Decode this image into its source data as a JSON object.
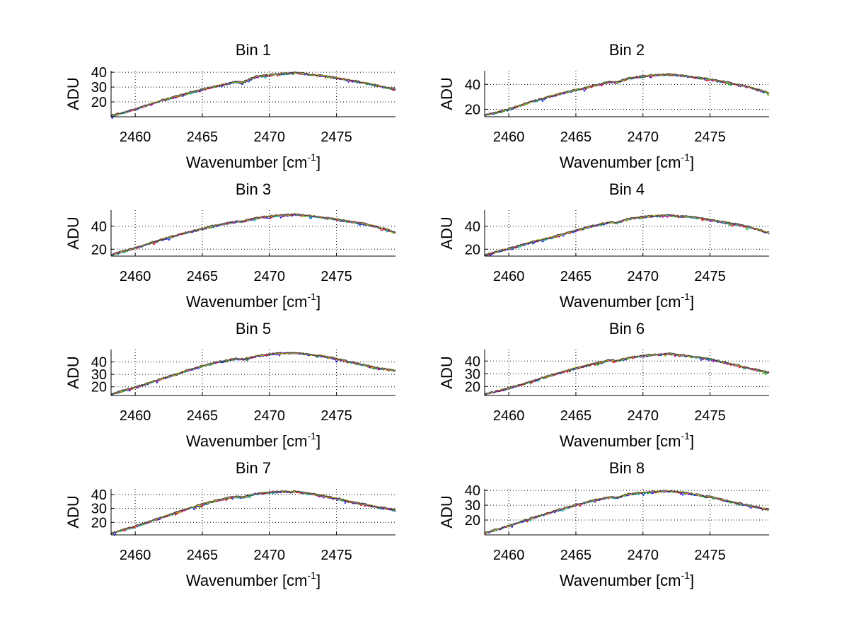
{
  "chart_data": [
    {
      "type": "line",
      "title": "Bin 1",
      "xlabel": "Wavenumber [cm",
      "xlabel_sup": "-1",
      "xlabel_close": "]",
      "ylabel": "ADU",
      "xlim": [
        2458.2,
        2479.4
      ],
      "ylim": [
        10,
        41
      ],
      "xticks": [
        2460,
        2465,
        2470,
        2475
      ],
      "yticks": [
        20,
        30,
        40
      ],
      "profile": {
        "x": [
          2458.2,
          2460,
          2462,
          2464,
          2466,
          2467.5,
          2468,
          2469,
          2470,
          2471,
          2472,
          2473,
          2474,
          2475,
          2476,
          2477,
          2478,
          2479.4
        ],
        "y": [
          10.5,
          15,
          21,
          26,
          30.5,
          33.5,
          33,
          37,
          38,
          39,
          39.5,
          38.5,
          37.5,
          36,
          34.5,
          33,
          31,
          28.5
        ]
      }
    },
    {
      "type": "line",
      "title": "Bin 2",
      "xlabel": "Wavenumber [cm",
      "xlabel_sup": "-1",
      "xlabel_close": "]",
      "ylabel": "ADU",
      "xlim": [
        2458.2,
        2479.4
      ],
      "ylim": [
        14,
        51
      ],
      "xticks": [
        2460,
        2465,
        2470,
        2475
      ],
      "yticks": [
        20,
        40
      ],
      "profile": {
        "x": [
          2458.2,
          2460,
          2462,
          2464,
          2466,
          2467.5,
          2468,
          2469,
          2470,
          2471,
          2472,
          2473,
          2474,
          2475,
          2476,
          2477,
          2478,
          2479.4
        ],
        "y": [
          15,
          20,
          27,
          33,
          38,
          42,
          41.5,
          45,
          46.5,
          47.5,
          48,
          47,
          45.5,
          44,
          42,
          40,
          37.5,
          33
        ]
      }
    },
    {
      "type": "line",
      "title": "Bin 3",
      "xlabel": "Wavenumber [cm",
      "xlabel_sup": "-1",
      "xlabel_close": "]",
      "ylabel": "ADU",
      "xlim": [
        2458.2,
        2479.4
      ],
      "ylim": [
        14,
        54
      ],
      "xticks": [
        2460,
        2465,
        2470,
        2475
      ],
      "yticks": [
        20,
        40
      ],
      "profile": {
        "x": [
          2458.2,
          2460,
          2462,
          2464,
          2466,
          2467.5,
          2468,
          2469,
          2470,
          2471,
          2472,
          2473,
          2474,
          2475,
          2476,
          2477,
          2478,
          2479.4
        ],
        "y": [
          15,
          21,
          28.5,
          35,
          40.5,
          44,
          44,
          47,
          48.5,
          49.5,
          50,
          49,
          47.5,
          46,
          44,
          42,
          39.5,
          34.5
        ]
      }
    },
    {
      "type": "line",
      "title": "Bin 4",
      "xlabel": "Wavenumber [cm",
      "xlabel_sup": "-1",
      "xlabel_close": "]",
      "ylabel": "ADU",
      "xlim": [
        2458.2,
        2479.4
      ],
      "ylim": [
        14,
        54
      ],
      "xticks": [
        2460,
        2465,
        2470,
        2475
      ],
      "yticks": [
        20,
        40
      ],
      "profile": {
        "x": [
          2458.2,
          2460,
          2462,
          2463.5,
          2464,
          2466,
          2467.5,
          2468,
          2469,
          2470,
          2471,
          2472,
          2473,
          2474,
          2475,
          2476,
          2477,
          2478,
          2479.4
        ],
        "y": [
          15,
          20.5,
          27,
          31,
          33,
          39.5,
          43.5,
          43,
          46.5,
          48,
          49,
          49.5,
          48.5,
          47.5,
          45.5,
          43.5,
          41.5,
          39,
          34
        ]
      }
    },
    {
      "type": "line",
      "title": "Bin 5",
      "xlabel": "Wavenumber [cm",
      "xlabel_sup": "-1",
      "xlabel_close": "]",
      "ylabel": "ADU",
      "xlim": [
        2458.2,
        2479.4
      ],
      "ylim": [
        13,
        50
      ],
      "xticks": [
        2460,
        2465,
        2470,
        2475
      ],
      "yticks": [
        20,
        30,
        40
      ],
      "profile": {
        "x": [
          2458.2,
          2460,
          2462,
          2464,
          2466,
          2467.5,
          2468,
          2469,
          2470,
          2471,
          2472,
          2473,
          2474,
          2475,
          2476,
          2477,
          2478,
          2479.4
        ],
        "y": [
          14,
          19.5,
          26.5,
          33.5,
          39.5,
          42.5,
          42,
          44.5,
          46,
          47,
          47,
          46,
          44.5,
          42.5,
          40,
          37.5,
          35,
          33
        ]
      }
    },
    {
      "type": "line",
      "title": "Bin 6",
      "xlabel": "Wavenumber [cm",
      "xlabel_sup": "-1",
      "xlabel_close": "]",
      "ylabel": "ADU",
      "xlim": [
        2458.2,
        2479.4
      ],
      "ylim": [
        13,
        49
      ],
      "xticks": [
        2460,
        2465,
        2470,
        2475
      ],
      "yticks": [
        20,
        30,
        40
      ],
      "profile": {
        "x": [
          2458.2,
          2460,
          2462,
          2464,
          2466,
          2467.5,
          2468,
          2469,
          2470,
          2471,
          2472,
          2473,
          2474,
          2475,
          2476,
          2477,
          2478,
          2479.4
        ],
        "y": [
          14,
          18.5,
          25,
          31.5,
          37,
          40.5,
          40,
          42.5,
          44,
          45,
          45.5,
          44.5,
          43,
          41.5,
          39,
          36.5,
          34,
          31
        ]
      }
    },
    {
      "type": "line",
      "title": "Bin 7",
      "xlabel": "Wavenumber [cm",
      "xlabel_sup": "-1",
      "xlabel_close": "]",
      "ylabel": "ADU",
      "xlim": [
        2458.2,
        2479.4
      ],
      "ylim": [
        11,
        44
      ],
      "xticks": [
        2460,
        2465,
        2470,
        2475
      ],
      "yticks": [
        20,
        30,
        40
      ],
      "profile": {
        "x": [
          2458.2,
          2460,
          2462,
          2464,
          2466,
          2467.5,
          2468,
          2469,
          2470,
          2471,
          2472,
          2473,
          2474,
          2475,
          2476,
          2477,
          2478,
          2479.4
        ],
        "y": [
          12,
          17,
          23.5,
          30,
          35.5,
          38.5,
          38,
          40.5,
          41.5,
          42,
          42,
          40.5,
          39,
          37,
          35,
          33,
          31,
          29
        ]
      }
    },
    {
      "type": "line",
      "title": "Bin 8",
      "xlabel": "Wavenumber [cm",
      "xlabel_sup": "-1",
      "xlabel_close": "]",
      "ylabel": "ADU",
      "xlim": [
        2458.2,
        2479.4
      ],
      "ylim": [
        10,
        41
      ],
      "xticks": [
        2460,
        2465,
        2470,
        2475
      ],
      "yticks": [
        20,
        30,
        40
      ],
      "profile": {
        "x": [
          2458.2,
          2460,
          2462,
          2464,
          2466,
          2467.5,
          2468,
          2469,
          2470,
          2471,
          2472,
          2473,
          2474,
          2475,
          2476,
          2477,
          2478,
          2479.4
        ],
        "y": [
          11,
          16,
          22,
          27.5,
          32.5,
          35.5,
          35,
          37.5,
          38.5,
          39,
          39.5,
          38.5,
          37,
          35.5,
          33.5,
          31.5,
          29.5,
          27
        ]
      }
    }
  ],
  "series_colors": [
    "#0000ff",
    "#00aa00",
    "#ff0000",
    "#00bfbf",
    "#bf00bf",
    "#bfbf00",
    "#404040"
  ]
}
